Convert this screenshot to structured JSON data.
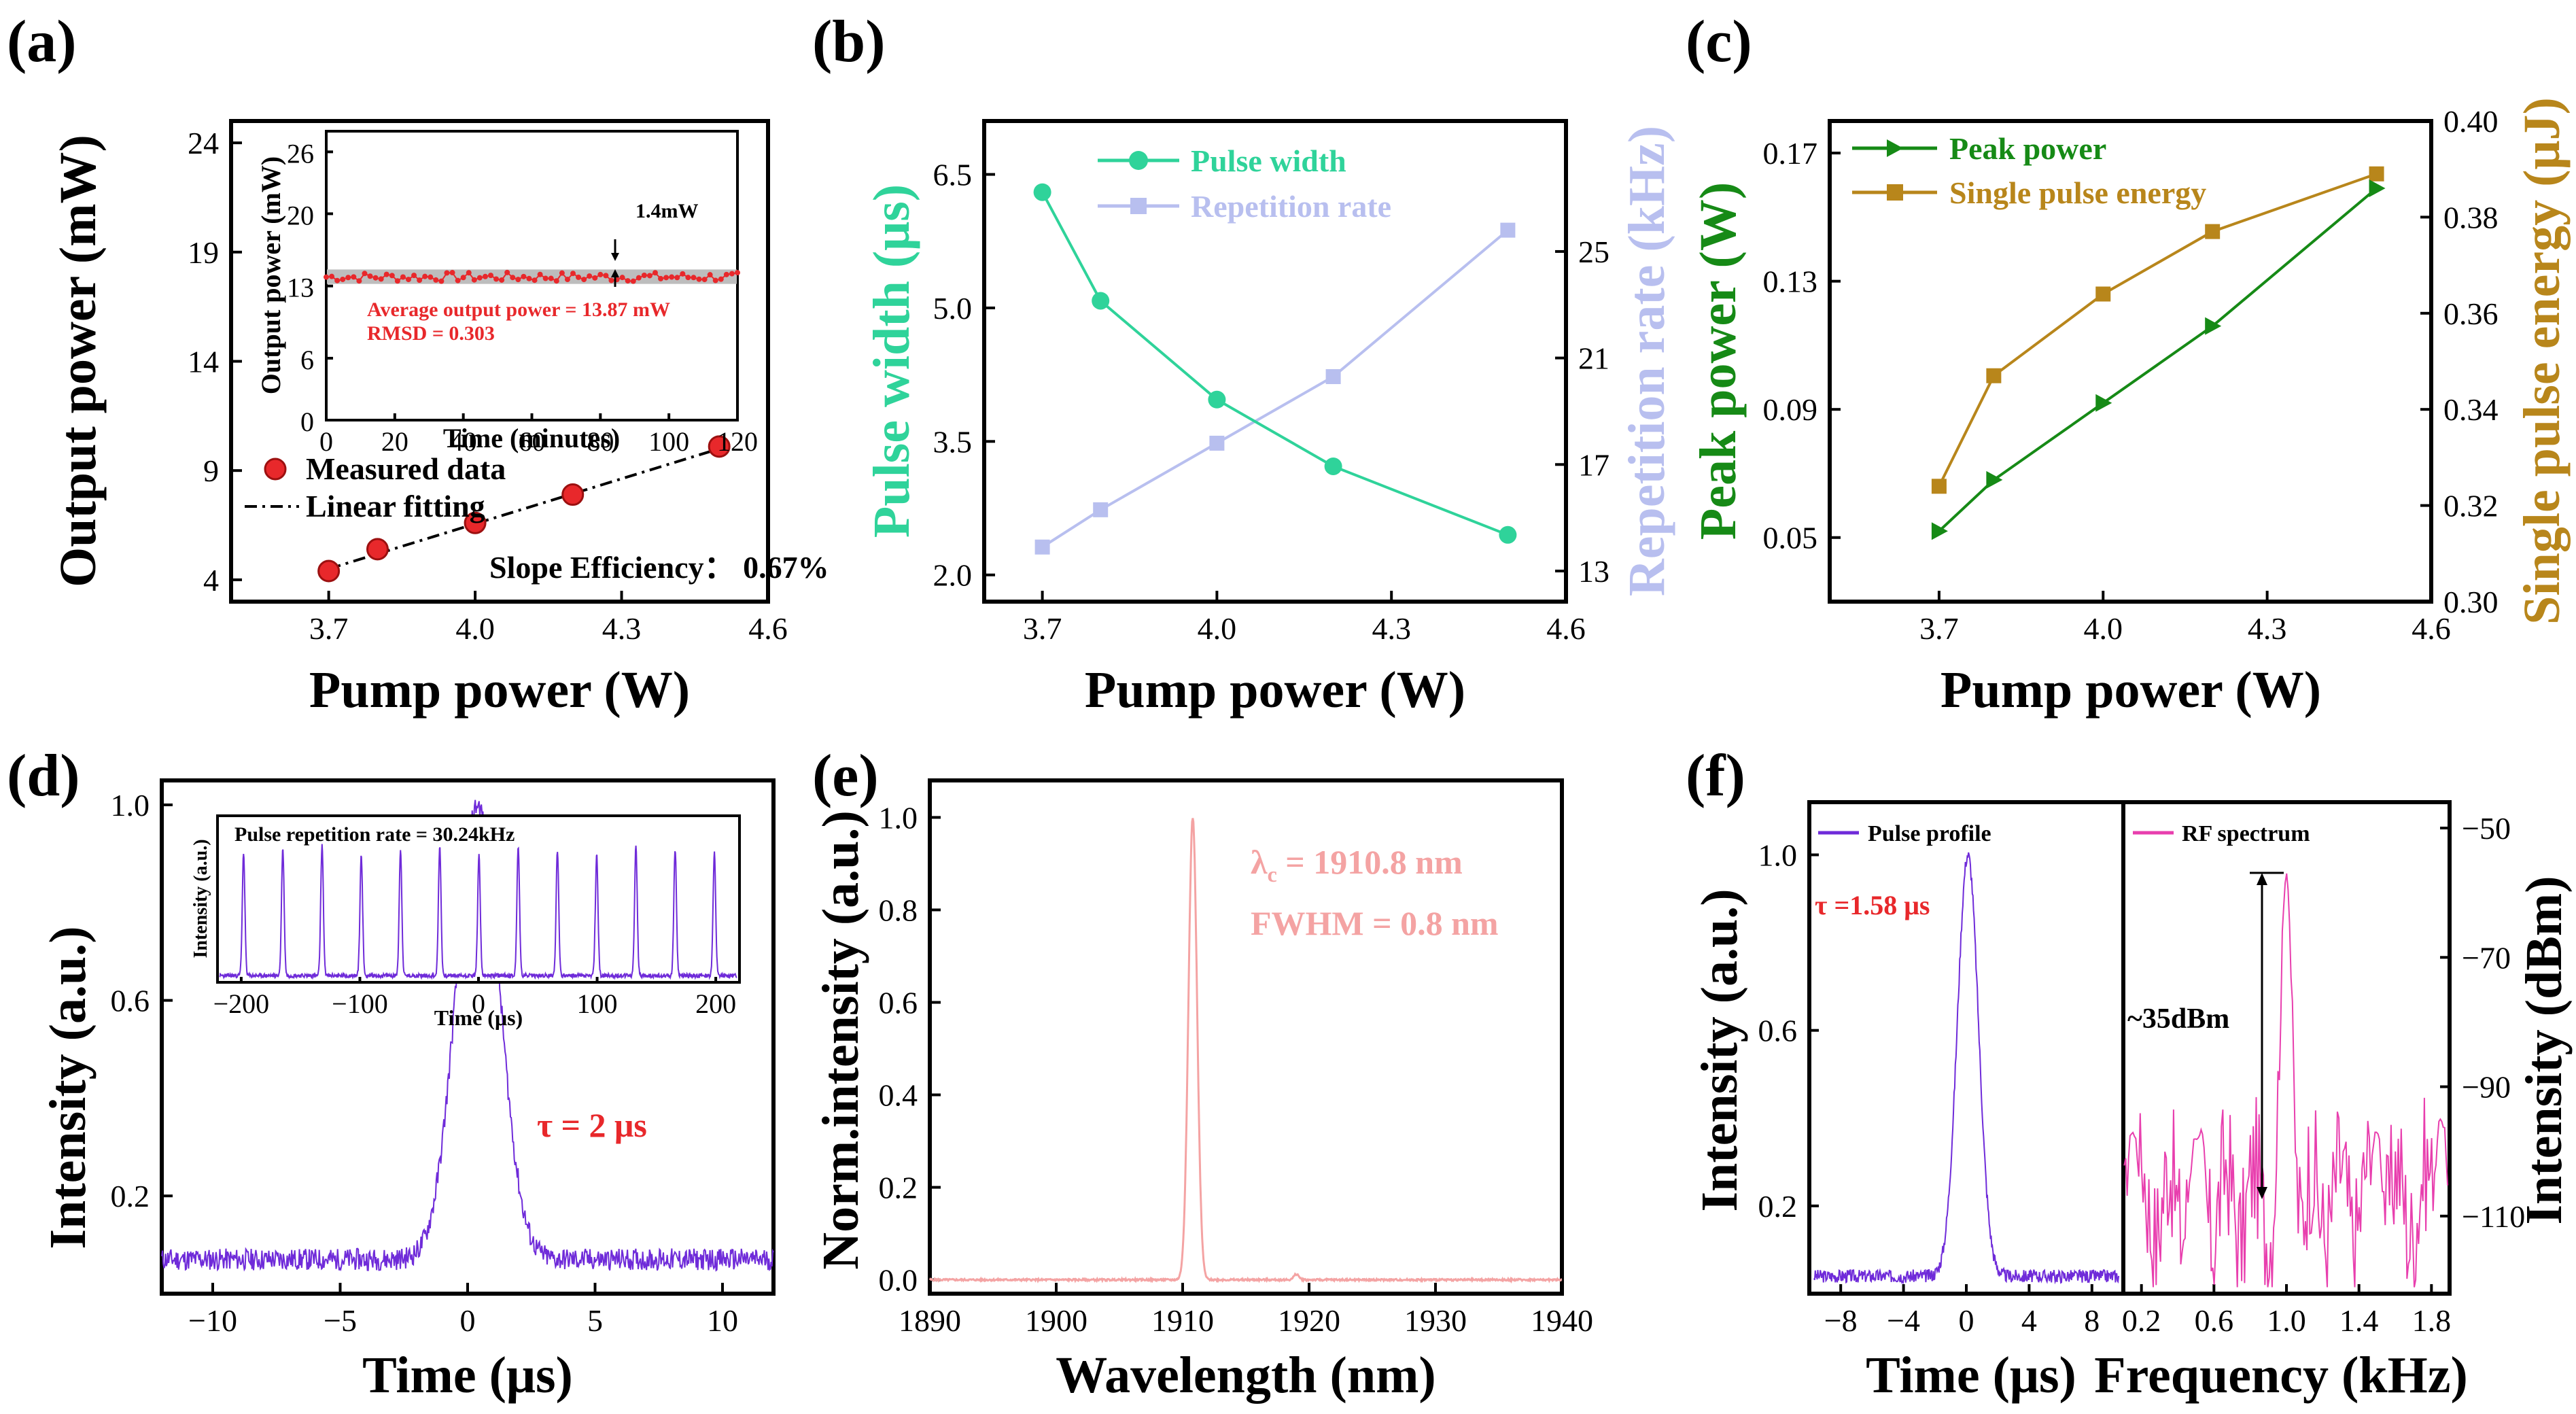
{
  "colors": {
    "red": "#e8282b",
    "green_teal": "#2fd39a",
    "lavender": "#b8bfef",
    "green": "#168a16",
    "gold": "#b8861b",
    "purple": "#6f2bd9",
    "salmon": "#f4a3a3",
    "pink": "#e83fae",
    "annot_red": "#e8282b"
  },
  "chart_data": [
    {
      "panel": "(a)",
      "type": "scatter",
      "xlabel": "Pump power (W)",
      "ylabel": "Output power (mW)",
      "xlim": [
        3.5,
        4.6
      ],
      "ylim": [
        3,
        25
      ],
      "xticks": [
        "3.7",
        "4.0",
        "4.3",
        "4.6"
      ],
      "yticks": [
        "4",
        "9",
        "14",
        "19",
        "24"
      ],
      "series": [
        {
          "name": "Measured data",
          "x": [
            3.7,
            3.8,
            4.0,
            4.2,
            4.5
          ],
          "y": [
            4.4,
            5.4,
            6.6,
            7.9,
            10.1
          ]
        },
        {
          "name": "Linear fitting",
          "x": [
            3.7,
            4.5
          ],
          "y": [
            4.5,
            10.0
          ]
        }
      ],
      "legend": [
        "Measured data",
        "Linear fitting"
      ],
      "annotation": "Slope Efficiency： 0.67%",
      "inset": {
        "xlabel": "Time (minutes)",
        "ylabel": "Output power (mW)",
        "xlim": [
          0,
          120
        ],
        "ylim": [
          0,
          28
        ],
        "xticks": [
          "0",
          "20",
          "40",
          "60",
          "80",
          "100",
          "120"
        ],
        "yticks": [
          "0",
          "6",
          "13",
          "20",
          "26"
        ],
        "stability_mean": 13.87,
        "fluctuation_label": "1.4mW",
        "avg_label": "Average output power = 13.87 mW",
        "rmsd_label": "RMSD = 0.303"
      }
    },
    {
      "panel": "(b)",
      "type": "line",
      "xlabel": "Pump power (W)",
      "ylabel_left": "Pulse width (μs)",
      "ylabel_right": "Repetition rate (kHz)",
      "xlim": [
        3.6,
        4.6
      ],
      "ylim_left": [
        1.7,
        7.1
      ],
      "ylim_right": [
        11.85,
        29.9
      ],
      "xticks": [
        "3.7",
        "4.0",
        "4.3",
        "4.6"
      ],
      "yticks_left": [
        "2.0",
        "3.5",
        "5.0",
        "6.5"
      ],
      "yticks_right": [
        "13",
        "17",
        "21",
        "25"
      ],
      "x": [
        3.7,
        3.8,
        4.0,
        4.2,
        4.5
      ],
      "series": [
        {
          "name": "Pulse width",
          "axis": "left",
          "values": [
            6.3,
            5.08,
            3.97,
            3.22,
            2.45
          ]
        },
        {
          "name": "Repetition rate",
          "axis": "right",
          "values": [
            13.9,
            15.3,
            17.8,
            20.3,
            25.8
          ]
        }
      ]
    },
    {
      "panel": "(c)",
      "type": "line",
      "xlabel": "Pump power (W)",
      "ylabel_left": "Peak power (W)",
      "ylabel_right": "Single pulse energy (μJ)",
      "xlim": [
        3.5,
        4.6
      ],
      "ylim_left": [
        0.03,
        0.18
      ],
      "ylim_right": [
        0.3,
        0.4
      ],
      "xticks": [
        "3.7",
        "4.0",
        "4.3",
        "4.6"
      ],
      "yticks_left": [
        "0.05",
        "0.09",
        "0.13",
        "0.17"
      ],
      "yticks_right": [
        "0.30",
        "0.32",
        "0.34",
        "0.36",
        "0.38",
        "0.40"
      ],
      "x": [
        3.7,
        3.8,
        4.0,
        4.2,
        4.5
      ],
      "series": [
        {
          "name": "Peak power",
          "axis": "left",
          "values": [
            0.052,
            0.068,
            0.092,
            0.116,
            0.159
          ]
        },
        {
          "name": "Single pulse energy",
          "axis": "right",
          "values": [
            0.324,
            0.347,
            0.364,
            0.377,
            0.389
          ]
        }
      ]
    },
    {
      "panel": "(d)",
      "type": "line",
      "xlabel": "Time (μs)",
      "ylabel": "Intensity (a.u.)",
      "xlim": [
        -12,
        12
      ],
      "ylim": [
        0.0,
        1.05
      ],
      "xticks": [
        "−10",
        "−5",
        "0",
        "5",
        "10"
      ],
      "yticks": [
        "0.2",
        "0.6",
        "1.0"
      ],
      "pulse_center": 0.4,
      "pulse_fwhm_us": 2.0,
      "baseline": 0.07,
      "annotation": "τ = 2 μs",
      "inset": {
        "title": "Pulse repetition rate = 30.24kHz",
        "xlabel": "Time (μs)",
        "ylabel": "Intensity (a.u.)",
        "xlim": [
          -220,
          220
        ],
        "xticks": [
          "−200",
          "−100",
          "0",
          "100",
          "200"
        ],
        "period_us": 33.07
      }
    },
    {
      "panel": "(e)",
      "type": "line",
      "xlabel": "Wavelength (nm)",
      "ylabel": "Norm.intensity (a.u.)",
      "xlim": [
        1890,
        1940
      ],
      "ylim": [
        -0.03,
        1.08
      ],
      "xticks": [
        "1890",
        "1900",
        "1910",
        "1920",
        "1930",
        "1940"
      ],
      "yticks": [
        "0.0",
        "0.2",
        "0.4",
        "0.6",
        "0.8",
        "1.0"
      ],
      "peak_nm": 1910.8,
      "fwhm_nm": 0.8,
      "annotation_center": "λ",
      "annotation_sub": "c",
      "annotation_value": " = 1910.8 nm",
      "annotation_fwhm": "FWHM = 0.8 nm"
    },
    {
      "panel": "(f)",
      "type": "line",
      "left": {
        "xlabel": "Time (μs)",
        "ylabel": "Intensity (a.u.)",
        "xlim": [
          -10,
          10
        ],
        "ylim": [
          0.0,
          1.12
        ],
        "xticks": [
          "−8",
          "−4",
          "0",
          "4",
          "8"
        ],
        "yticks": [
          "0.2",
          "0.6",
          "1.0"
        ],
        "legend": "Pulse profile",
        "annotation": "τ =1.58 μs"
      },
      "right": {
        "xlabel": "Frequency (kHz)",
        "ylabel": "Intensity (dBm)",
        "xlim": [
          0.1,
          1.9
        ],
        "ylim": [
          -122,
          -46
        ],
        "xticks": [
          "0.2",
          "0.6",
          "1.0",
          "1.4",
          "1.8"
        ],
        "yticks": [
          "−50",
          "−70",
          "−90",
          "−110"
        ],
        "legend": "RF spectrum",
        "annotation": "~35dBm"
      }
    }
  ]
}
